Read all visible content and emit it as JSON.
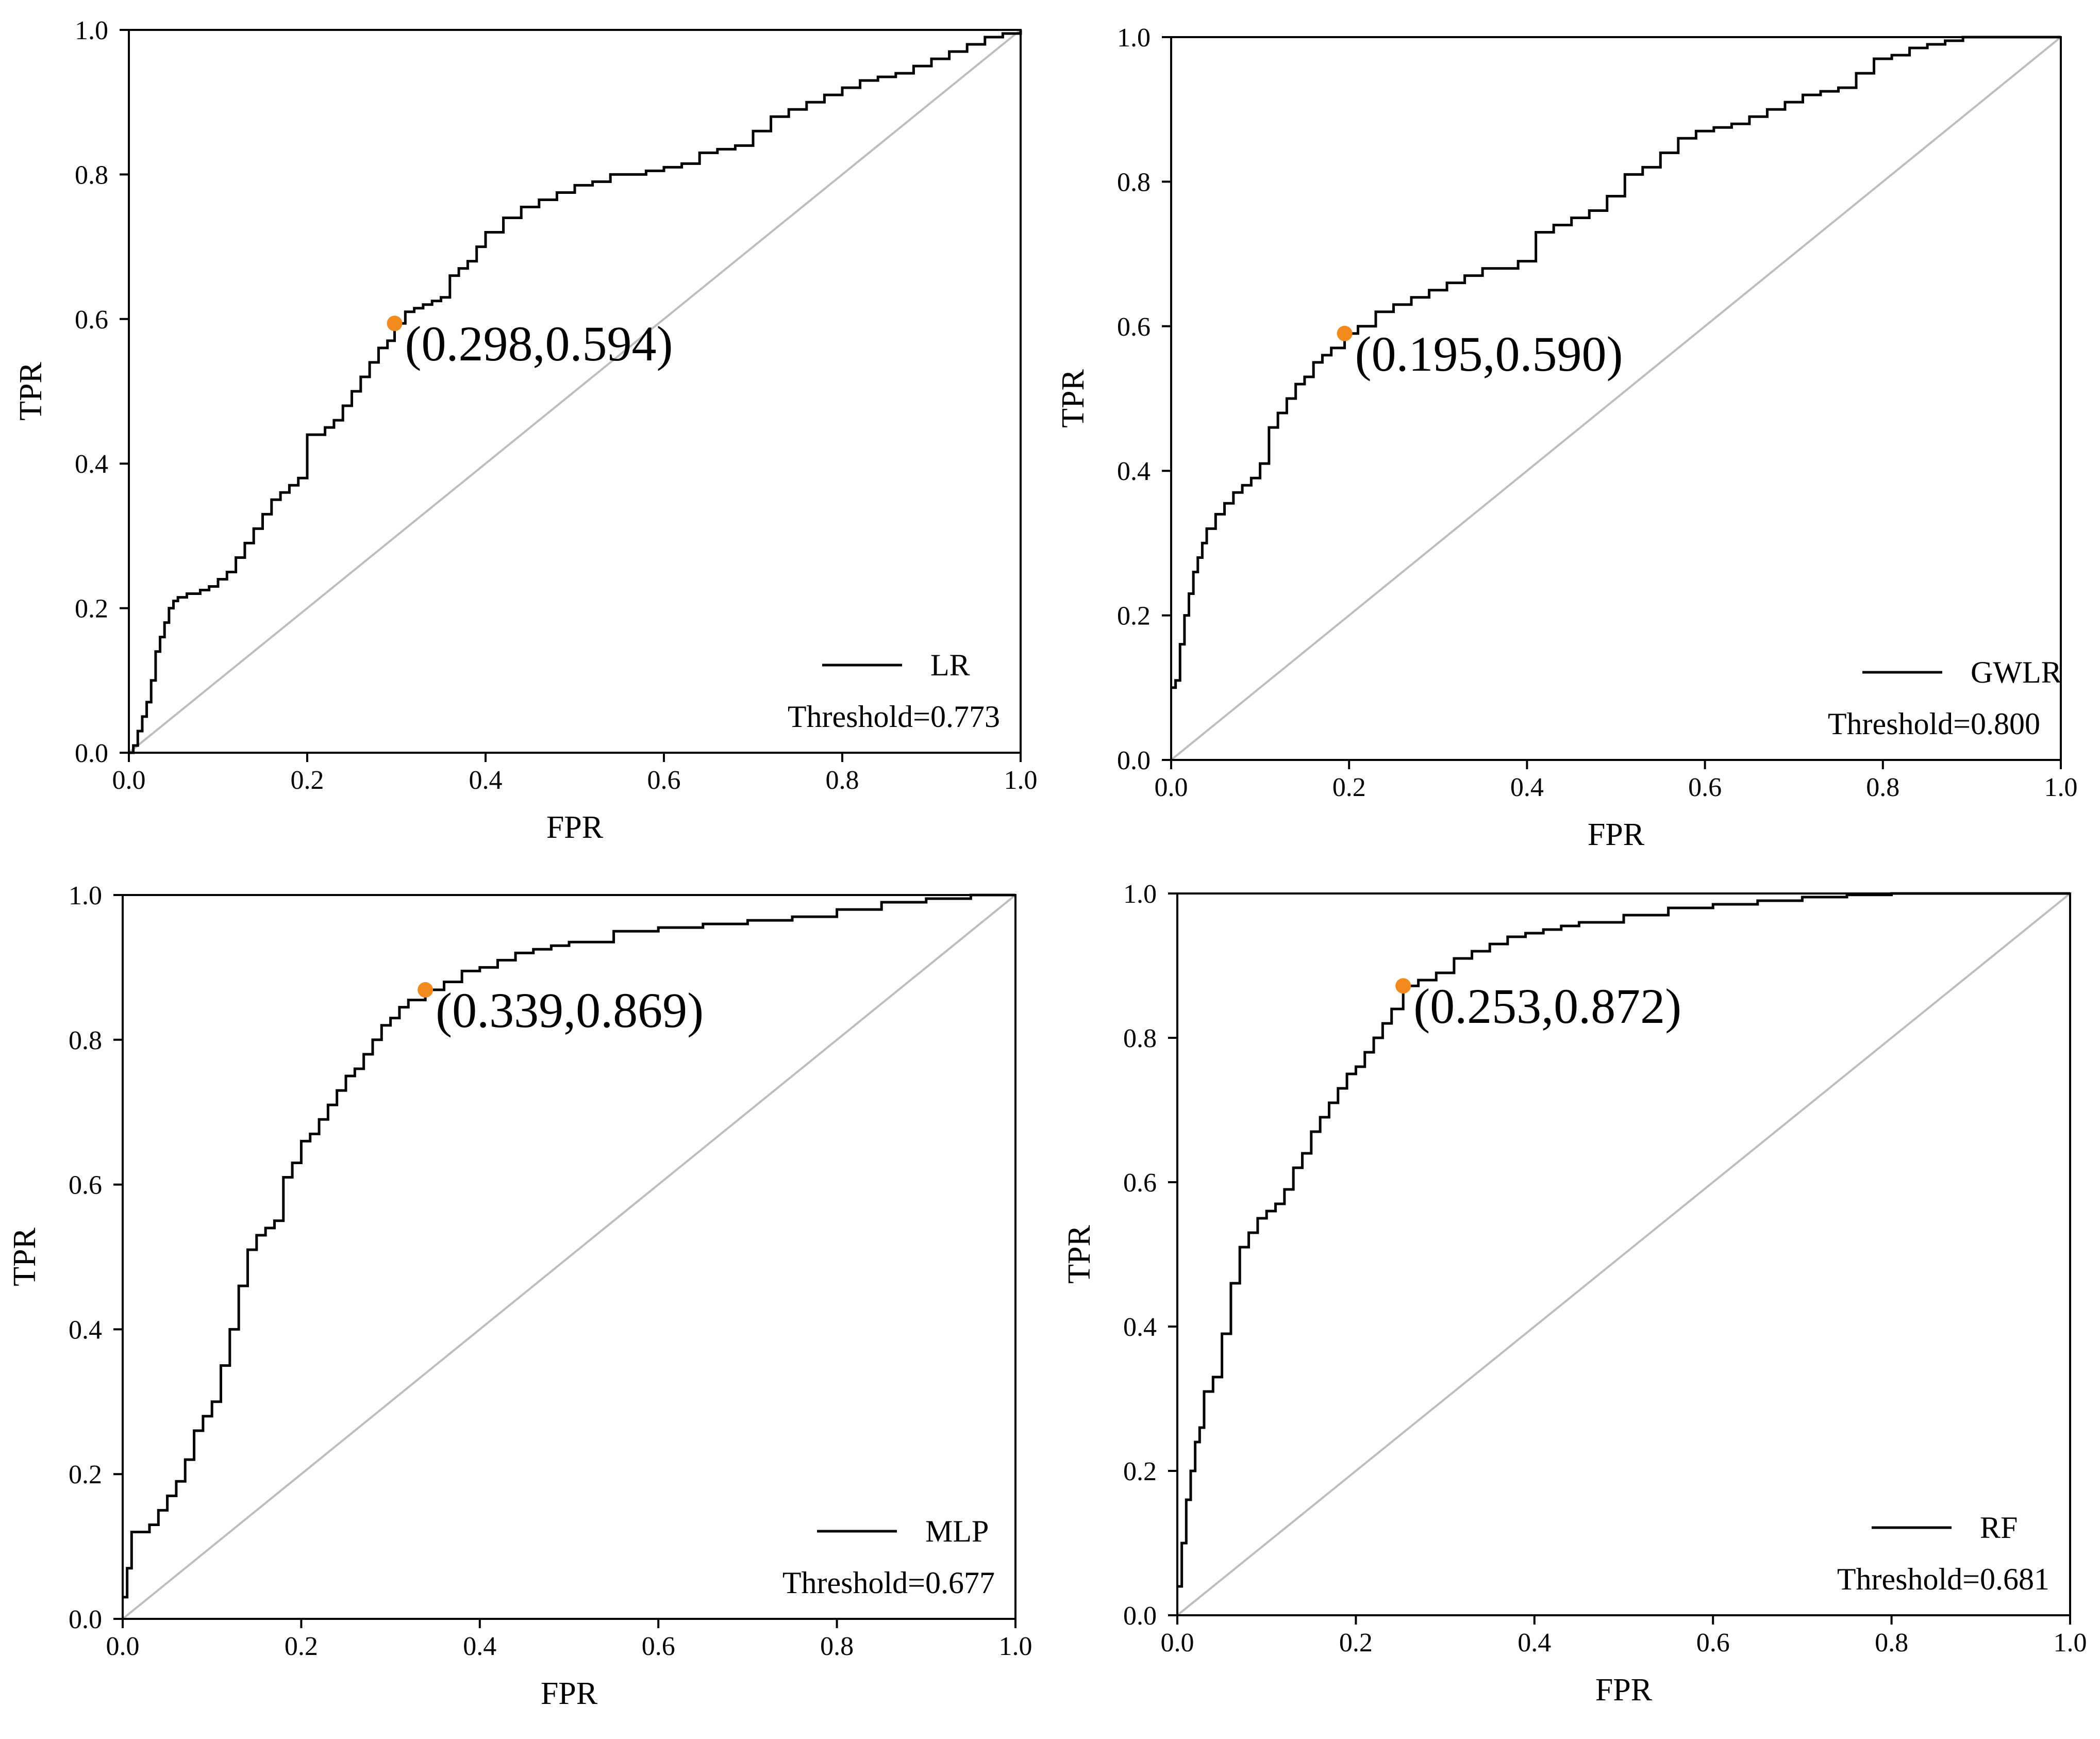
{
  "colors": {
    "curve": "#000000",
    "diagonal": "#bdbdbd",
    "optimal_point": "#f28a1e",
    "axis": "#000000"
  },
  "chart_data": [
    {
      "type": "line",
      "title": "",
      "xlabel": "FPR",
      "ylabel": "TPR",
      "xlim": [
        0,
        1
      ],
      "ylim": [
        0,
        1
      ],
      "xticks": [
        "0.0",
        "0.2",
        "0.4",
        "0.6",
        "0.8",
        "1.0"
      ],
      "yticks": [
        "0.0",
        "0.2",
        "0.4",
        "0.6",
        "0.8",
        "1.0"
      ],
      "grid": false,
      "legend": {
        "placement": "bottom-right",
        "label": "LR",
        "threshold": "Threshold=0.773"
      },
      "optimal_point": {
        "x": 0.298,
        "y": 0.594,
        "label": "(0.298,0.594)"
      },
      "series": [
        {
          "name": "LR",
          "step": true,
          "x": [
            0,
            0.005,
            0.01,
            0.015,
            0.02,
            0.025,
            0.03,
            0.035,
            0.04,
            0.045,
            0.05,
            0.055,
            0.06,
            0.065,
            0.07,
            0.08,
            0.09,
            0.1,
            0.11,
            0.12,
            0.13,
            0.14,
            0.15,
            0.16,
            0.17,
            0.18,
            0.19,
            0.2,
            0.21,
            0.22,
            0.23,
            0.24,
            0.25,
            0.26,
            0.27,
            0.28,
            0.29,
            0.298,
            0.31,
            0.32,
            0.33,
            0.34,
            0.35,
            0.36,
            0.37,
            0.38,
            0.39,
            0.4,
            0.42,
            0.44,
            0.46,
            0.48,
            0.5,
            0.52,
            0.54,
            0.56,
            0.58,
            0.6,
            0.62,
            0.64,
            0.66,
            0.68,
            0.7,
            0.72,
            0.74,
            0.76,
            0.78,
            0.8,
            0.82,
            0.84,
            0.86,
            0.88,
            0.9,
            0.92,
            0.94,
            0.96,
            0.98,
            1.0
          ],
          "y": [
            0,
            0.01,
            0.03,
            0.05,
            0.07,
            0.1,
            0.14,
            0.16,
            0.18,
            0.2,
            0.21,
            0.215,
            0.215,
            0.22,
            0.22,
            0.225,
            0.23,
            0.24,
            0.25,
            0.27,
            0.29,
            0.31,
            0.33,
            0.35,
            0.36,
            0.37,
            0.38,
            0.44,
            0.44,
            0.45,
            0.46,
            0.48,
            0.5,
            0.52,
            0.54,
            0.56,
            0.57,
            0.594,
            0.61,
            0.615,
            0.62,
            0.625,
            0.63,
            0.66,
            0.67,
            0.68,
            0.7,
            0.72,
            0.74,
            0.755,
            0.765,
            0.775,
            0.785,
            0.79,
            0.8,
            0.8,
            0.805,
            0.81,
            0.815,
            0.83,
            0.835,
            0.84,
            0.86,
            0.88,
            0.89,
            0.9,
            0.91,
            0.92,
            0.93,
            0.935,
            0.94,
            0.95,
            0.96,
            0.97,
            0.98,
            0.99,
            0.995,
            1.0
          ]
        }
      ]
    },
    {
      "type": "line",
      "title": "",
      "xlabel": "FPR",
      "ylabel": "TPR",
      "xlim": [
        0,
        1
      ],
      "ylim": [
        0,
        1
      ],
      "xticks": [
        "0.0",
        "0.2",
        "0.4",
        "0.6",
        "0.8",
        "1.0"
      ],
      "yticks": [
        "0.0",
        "0.2",
        "0.4",
        "0.6",
        "0.8",
        "1.0"
      ],
      "grid": false,
      "legend": {
        "placement": "bottom-right",
        "label": "GWLR",
        "threshold": "Threshold=0.800"
      },
      "optimal_point": {
        "x": 0.195,
        "y": 0.59,
        "label": "(0.195,0.590)"
      },
      "series": [
        {
          "name": "GWLR",
          "step": true,
          "x": [
            0,
            0.005,
            0.01,
            0.015,
            0.02,
            0.025,
            0.03,
            0.035,
            0.04,
            0.05,
            0.06,
            0.07,
            0.08,
            0.09,
            0.1,
            0.11,
            0.12,
            0.13,
            0.14,
            0.15,
            0.16,
            0.17,
            0.18,
            0.195,
            0.21,
            0.23,
            0.25,
            0.27,
            0.29,
            0.31,
            0.33,
            0.35,
            0.37,
            0.39,
            0.41,
            0.43,
            0.45,
            0.47,
            0.49,
            0.51,
            0.53,
            0.55,
            0.57,
            0.59,
            0.61,
            0.63,
            0.65,
            0.67,
            0.69,
            0.71,
            0.73,
            0.75,
            0.77,
            0.79,
            0.81,
            0.83,
            0.85,
            0.87,
            0.89,
            0.91,
            0.93,
            0.95,
            1.0
          ],
          "y": [
            0.1,
            0.11,
            0.16,
            0.2,
            0.23,
            0.26,
            0.28,
            0.3,
            0.32,
            0.34,
            0.355,
            0.37,
            0.38,
            0.39,
            0.41,
            0.46,
            0.48,
            0.5,
            0.52,
            0.53,
            0.55,
            0.56,
            0.57,
            0.59,
            0.6,
            0.62,
            0.63,
            0.64,
            0.65,
            0.66,
            0.67,
            0.68,
            0.68,
            0.69,
            0.73,
            0.74,
            0.75,
            0.76,
            0.78,
            0.81,
            0.82,
            0.84,
            0.86,
            0.87,
            0.875,
            0.88,
            0.89,
            0.9,
            0.91,
            0.92,
            0.925,
            0.93,
            0.95,
            0.97,
            0.975,
            0.985,
            0.99,
            0.995,
            1.0,
            1.0,
            1.0,
            1.0,
            1.0
          ]
        }
      ]
    },
    {
      "type": "line",
      "title": "",
      "xlabel": "FPR",
      "ylabel": "TPR",
      "xlim": [
        0,
        1
      ],
      "ylim": [
        0,
        1
      ],
      "xticks": [
        "0.0",
        "0.2",
        "0.4",
        "0.6",
        "0.8",
        "1.0"
      ],
      "yticks": [
        "0.0",
        "0.2",
        "0.4",
        "0.6",
        "0.8",
        "1.0"
      ],
      "grid": false,
      "legend": {
        "placement": "bottom-right",
        "label": "MLP",
        "threshold": "Threshold=0.677"
      },
      "optimal_point": {
        "x": 0.339,
        "y": 0.869,
        "label": "(0.339,0.869)"
      },
      "series": [
        {
          "name": "MLP",
          "step": true,
          "x": [
            0,
            0.005,
            0.01,
            0.02,
            0.03,
            0.04,
            0.05,
            0.06,
            0.07,
            0.08,
            0.09,
            0.1,
            0.11,
            0.12,
            0.13,
            0.14,
            0.15,
            0.16,
            0.17,
            0.18,
            0.19,
            0.2,
            0.21,
            0.22,
            0.23,
            0.24,
            0.25,
            0.26,
            0.27,
            0.28,
            0.29,
            0.3,
            0.31,
            0.32,
            0.339,
            0.36,
            0.38,
            0.4,
            0.42,
            0.44,
            0.46,
            0.48,
            0.5,
            0.55,
            0.6,
            0.65,
            0.7,
            0.75,
            0.8,
            0.85,
            0.9,
            0.95,
            1.0
          ],
          "y": [
            0.03,
            0.07,
            0.12,
            0.12,
            0.13,
            0.15,
            0.17,
            0.19,
            0.22,
            0.26,
            0.28,
            0.3,
            0.35,
            0.4,
            0.46,
            0.51,
            0.53,
            0.54,
            0.55,
            0.61,
            0.63,
            0.66,
            0.67,
            0.69,
            0.71,
            0.73,
            0.75,
            0.76,
            0.78,
            0.8,
            0.82,
            0.83,
            0.845,
            0.855,
            0.869,
            0.88,
            0.895,
            0.9,
            0.91,
            0.92,
            0.925,
            0.93,
            0.935,
            0.95,
            0.955,
            0.96,
            0.965,
            0.97,
            0.98,
            0.99,
            0.995,
            1.0,
            1.0
          ]
        }
      ]
    },
    {
      "type": "line",
      "title": "",
      "xlabel": "FPR",
      "ylabel": "TPR",
      "xlim": [
        0,
        1
      ],
      "ylim": [
        0,
        1
      ],
      "xticks": [
        "0.0",
        "0.2",
        "0.4",
        "0.6",
        "0.8",
        "1.0"
      ],
      "yticks": [
        "0.0",
        "0.2",
        "0.4",
        "0.6",
        "0.8",
        "1.0"
      ],
      "grid": false,
      "legend": {
        "placement": "bottom-right",
        "label": "RF",
        "threshold": "Threshold=0.681"
      },
      "optimal_point": {
        "x": 0.253,
        "y": 0.872,
        "label": "(0.253,0.872)"
      },
      "series": [
        {
          "name": "RF",
          "step": true,
          "x": [
            0,
            0.005,
            0.01,
            0.015,
            0.02,
            0.025,
            0.03,
            0.04,
            0.05,
            0.06,
            0.07,
            0.08,
            0.09,
            0.1,
            0.11,
            0.12,
            0.13,
            0.14,
            0.15,
            0.16,
            0.17,
            0.18,
            0.19,
            0.2,
            0.21,
            0.22,
            0.23,
            0.24,
            0.253,
            0.27,
            0.29,
            0.31,
            0.33,
            0.35,
            0.37,
            0.39,
            0.41,
            0.43,
            0.45,
            0.5,
            0.55,
            0.6,
            0.65,
            0.7,
            0.75,
            0.8,
            0.9,
            1.0
          ],
          "y": [
            0.04,
            0.1,
            0.16,
            0.2,
            0.24,
            0.26,
            0.31,
            0.33,
            0.39,
            0.46,
            0.51,
            0.53,
            0.55,
            0.56,
            0.57,
            0.59,
            0.62,
            0.64,
            0.67,
            0.69,
            0.71,
            0.73,
            0.75,
            0.76,
            0.78,
            0.8,
            0.82,
            0.84,
            0.872,
            0.88,
            0.89,
            0.91,
            0.92,
            0.93,
            0.94,
            0.945,
            0.95,
            0.955,
            0.96,
            0.97,
            0.98,
            0.985,
            0.99,
            0.995,
            0.998,
            1.0,
            1.0,
            1.0
          ]
        }
      ]
    }
  ]
}
